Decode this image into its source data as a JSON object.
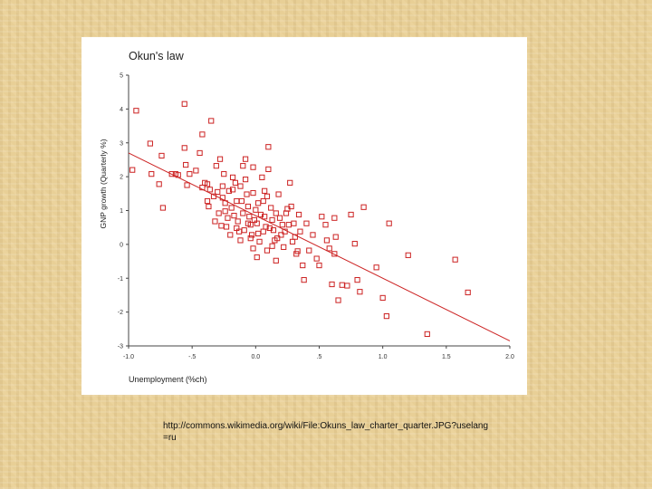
{
  "caption": "http://commons.wikimedia.org/wiki/File:Okuns_law_charter_quarter.JPG?uselang=ru",
  "colors": {
    "marker": "#cc2222",
    "line": "#cc2222",
    "axis": "#444444",
    "background": "#e8cf96"
  },
  "chart_data": {
    "type": "scatter",
    "title": "Okun's law",
    "xlabel": "Unemployment (%ch)",
    "ylabel": "GNP growth (Quarterly %)",
    "xlim": [
      -1.0,
      2.0
    ],
    "ylim": [
      -3,
      5
    ],
    "xticks": [
      "-1.0",
      "-.5",
      "0.0",
      ".5",
      "1.0",
      "1.5",
      "2.0"
    ],
    "yticks": [
      "5",
      "4",
      "3",
      "2",
      "1",
      "0",
      "-1",
      "-2",
      "-3"
    ],
    "xtick_values": [
      -1.0,
      -0.5,
      0.0,
      0.5,
      1.0,
      1.5,
      2.0
    ],
    "ytick_values": [
      5,
      4,
      3,
      2,
      1,
      0,
      -1,
      -2,
      -3
    ],
    "grid": false,
    "fit_line": {
      "x": [
        -1.0,
        2.0
      ],
      "y": [
        2.7,
        -2.85
      ]
    },
    "series": [
      {
        "marker": "square-open",
        "points": [
          [
            -0.94,
            3.95
          ],
          [
            -0.97,
            2.2
          ],
          [
            -0.83,
            2.98
          ],
          [
            -0.82,
            2.08
          ],
          [
            -0.74,
            2.62
          ],
          [
            -0.76,
            1.78
          ],
          [
            -0.73,
            1.08
          ],
          [
            -0.66,
            2.08
          ],
          [
            -0.63,
            2.08
          ],
          [
            -0.61,
            2.05
          ],
          [
            -0.56,
            2.85
          ],
          [
            -0.55,
            2.35
          ],
          [
            -0.54,
            1.75
          ],
          [
            -0.52,
            2.08
          ],
          [
            -0.56,
            4.15
          ],
          [
            -0.47,
            2.18
          ],
          [
            -0.44,
            2.7
          ],
          [
            -0.42,
            1.68
          ],
          [
            -0.42,
            3.25
          ],
          [
            -0.4,
            1.82
          ],
          [
            -0.38,
            1.78
          ],
          [
            -0.35,
            3.65
          ],
          [
            -0.36,
            1.62
          ],
          [
            -0.33,
            1.42
          ],
          [
            -0.38,
            1.28
          ],
          [
            -0.37,
            1.12
          ],
          [
            -0.31,
            2.32
          ],
          [
            -0.3,
            1.55
          ],
          [
            -0.28,
            2.52
          ],
          [
            -0.25,
            2.08
          ],
          [
            -0.26,
            1.72
          ],
          [
            -0.24,
            1.22
          ],
          [
            -0.24,
            0.98
          ],
          [
            -0.22,
            0.78
          ],
          [
            -0.23,
            0.52
          ],
          [
            -0.2,
            0.28
          ],
          [
            -0.18,
            1.62
          ],
          [
            -0.16,
            1.82
          ],
          [
            -0.15,
            1.28
          ],
          [
            -0.14,
            0.68
          ],
          [
            -0.13,
            0.38
          ],
          [
            -0.12,
            0.12
          ],
          [
            -0.1,
            2.32
          ],
          [
            -0.08,
            2.52
          ],
          [
            -0.07,
            1.48
          ],
          [
            -0.06,
            1.12
          ],
          [
            -0.05,
            0.82
          ],
          [
            -0.04,
            0.58
          ],
          [
            -0.03,
            0.28
          ],
          [
            -0.02,
            -0.12
          ],
          [
            -0.02,
            2.28
          ],
          [
            0.0,
            1.02
          ],
          [
            0.01,
            0.62
          ],
          [
            0.02,
            0.32
          ],
          [
            0.03,
            0.08
          ],
          [
            0.05,
            1.98
          ],
          [
            0.06,
            1.28
          ],
          [
            0.07,
            0.82
          ],
          [
            0.08,
            0.52
          ],
          [
            0.09,
            -0.18
          ],
          [
            0.1,
            2.22
          ],
          [
            0.1,
            2.88
          ],
          [
            0.12,
            1.08
          ],
          [
            0.13,
            0.72
          ],
          [
            0.14,
            0.42
          ],
          [
            0.15,
            0.12
          ],
          [
            0.16,
            -0.48
          ],
          [
            0.18,
            1.48
          ],
          [
            0.19,
            0.78
          ],
          [
            0.2,
            0.28
          ],
          [
            0.22,
            -0.08
          ],
          [
            0.24,
            0.92
          ],
          [
            0.26,
            0.58
          ],
          [
            0.27,
            1.82
          ],
          [
            0.28,
            1.12
          ],
          [
            0.3,
            0.62
          ],
          [
            0.31,
            0.22
          ],
          [
            0.32,
            -0.28
          ],
          [
            0.34,
            0.88
          ],
          [
            0.35,
            0.38
          ],
          [
            0.37,
            -0.62
          ],
          [
            0.38,
            -1.05
          ],
          [
            0.4,
            0.62
          ],
          [
            0.42,
            -0.18
          ],
          [
            0.45,
            0.28
          ],
          [
            0.48,
            -0.42
          ],
          [
            0.5,
            -0.62
          ],
          [
            0.52,
            0.82
          ],
          [
            0.55,
            0.58
          ],
          [
            0.56,
            0.12
          ],
          [
            0.58,
            -0.12
          ],
          [
            0.6,
            -1.18
          ],
          [
            0.62,
            0.78
          ],
          [
            0.63,
            0.22
          ],
          [
            0.62,
            -0.28
          ],
          [
            0.65,
            -1.65
          ],
          [
            0.68,
            -1.2
          ],
          [
            0.72,
            -1.22
          ],
          [
            0.75,
            0.88
          ],
          [
            0.78,
            0.02
          ],
          [
            0.8,
            -1.05
          ],
          [
            0.82,
            -1.4
          ],
          [
            0.85,
            1.1
          ],
          [
            0.95,
            -0.68
          ],
          [
            1.0,
            -1.58
          ],
          [
            1.03,
            -2.12
          ],
          [
            1.05,
            0.62
          ],
          [
            1.2,
            -0.32
          ],
          [
            1.35,
            -2.65
          ],
          [
            1.57,
            -0.45
          ],
          [
            1.67,
            -1.42
          ],
          [
            -0.18,
            1.98
          ],
          [
            -0.12,
            1.72
          ],
          [
            -0.08,
            1.92
          ],
          [
            -0.02,
            1.52
          ],
          [
            0.02,
            1.22
          ],
          [
            0.04,
            0.88
          ],
          [
            -0.06,
            0.62
          ],
          [
            -0.1,
            0.92
          ],
          [
            -0.15,
            0.48
          ],
          [
            -0.19,
            1.08
          ],
          [
            -0.26,
            1.38
          ],
          [
            -0.29,
            0.92
          ],
          [
            -0.32,
            0.68
          ],
          [
            0.06,
            0.38
          ],
          [
            0.11,
            0.48
          ],
          [
            0.16,
            0.92
          ],
          [
            0.21,
            0.58
          ],
          [
            0.09,
            1.42
          ],
          [
            0.01,
            -0.38
          ],
          [
            -0.04,
            0.18
          ],
          [
            0.13,
            -0.05
          ],
          [
            0.23,
            0.38
          ],
          [
            0.29,
            0.08
          ],
          [
            -0.21,
            1.58
          ],
          [
            -0.11,
            1.28
          ],
          [
            0.07,
            1.58
          ],
          [
            0.17,
            0.18
          ],
          [
            -0.01,
            0.72
          ],
          [
            -0.09,
            0.42
          ],
          [
            0.25,
            1.05
          ],
          [
            0.33,
            -0.2
          ],
          [
            -0.27,
            0.55
          ],
          [
            -0.17,
            0.85
          ]
        ]
      }
    ]
  }
}
